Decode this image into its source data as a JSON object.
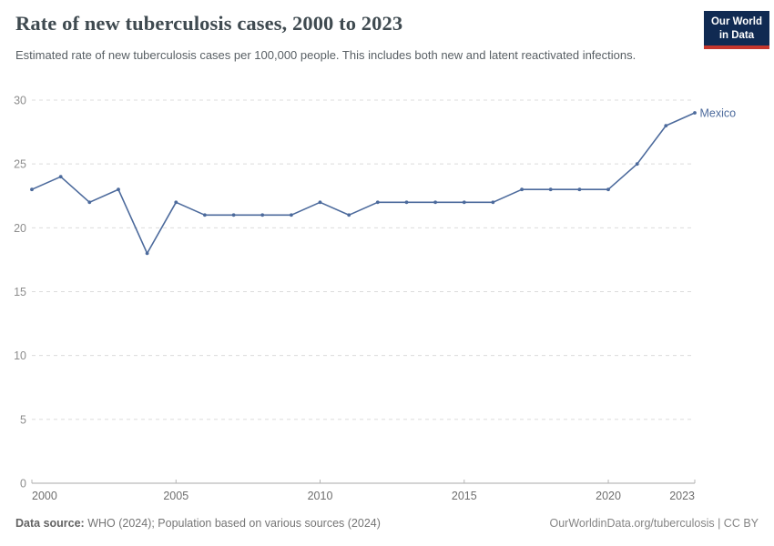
{
  "header": {
    "title": "Rate of new tuberculosis cases, 2000 to 2023",
    "subtitle": "Estimated rate of new tuberculosis cases per 100,000 people. This includes both new and latent reactivated infections.",
    "logo": {
      "line1": "Our World",
      "line2": "in Data"
    }
  },
  "footer": {
    "source_label": "Data source:",
    "source_text": " WHO (2024); Population based on various sources (2024)",
    "attribution": "OurWorldinData.org/tuberculosis | CC BY"
  },
  "chart_data": {
    "type": "line",
    "title": "Rate of new tuberculosis cases, 2000 to 2023",
    "xlabel": "",
    "ylabel": "",
    "x": [
      2000,
      2001,
      2002,
      2003,
      2004,
      2005,
      2006,
      2007,
      2008,
      2009,
      2010,
      2011,
      2012,
      2013,
      2014,
      2015,
      2016,
      2017,
      2018,
      2019,
      2020,
      2021,
      2022,
      2023
    ],
    "series": [
      {
        "name": "Mexico",
        "color": "#4c6a9c",
        "values": [
          23,
          24,
          22,
          23,
          18,
          22,
          21,
          21,
          21,
          21,
          22,
          21,
          22,
          22,
          22,
          22,
          22,
          23,
          23,
          23,
          23,
          25,
          28,
          29
        ]
      }
    ],
    "end_label": "Mexico",
    "xlim": [
      2000,
      2023
    ],
    "ylim": [
      0,
      30
    ],
    "x_ticks": [
      2000,
      2005,
      2010,
      2015,
      2020,
      2023
    ],
    "y_ticks": [
      0,
      5,
      10,
      15,
      20,
      25,
      30
    ],
    "grid": "horizontal-dashed",
    "legend_position": "end-of-line"
  },
  "colors": {
    "line": "#4c6a9c",
    "grid": "#dcdcdc",
    "axis": "#a8a8a8",
    "axis_tick": "#b5b5b5",
    "y_tick_label": "#8d8d8d",
    "x_tick_label": "#6e6e6e",
    "logo_bg": "#102a52",
    "logo_red": "#c5362c"
  }
}
